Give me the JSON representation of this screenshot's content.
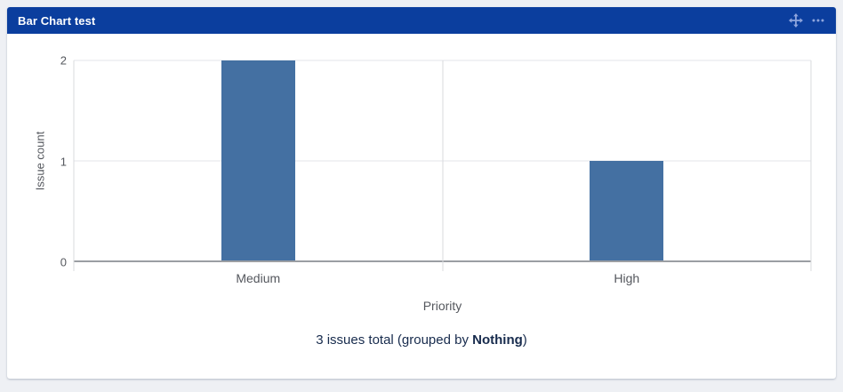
{
  "widget": {
    "title": "Bar Chart test",
    "header_color": "#0b3e9e",
    "icon_color": "#8ea5dd",
    "icons": [
      {
        "name": "move-icon"
      },
      {
        "name": "more-options-icon"
      }
    ]
  },
  "chart_data": {
    "type": "bar",
    "categories": [
      "Medium",
      "High"
    ],
    "values": [
      2,
      1
    ],
    "title": "",
    "xlabel": "Priority",
    "ylabel": "Issue count",
    "ylim": [
      0,
      2
    ],
    "yticks": [
      0,
      1,
      2
    ],
    "bar_color": "#4470a2",
    "grid": true,
    "legend": "none"
  },
  "footer": {
    "text_before": "3 issues total (grouped by ",
    "group_by": "Nothing",
    "text_after": ")"
  }
}
